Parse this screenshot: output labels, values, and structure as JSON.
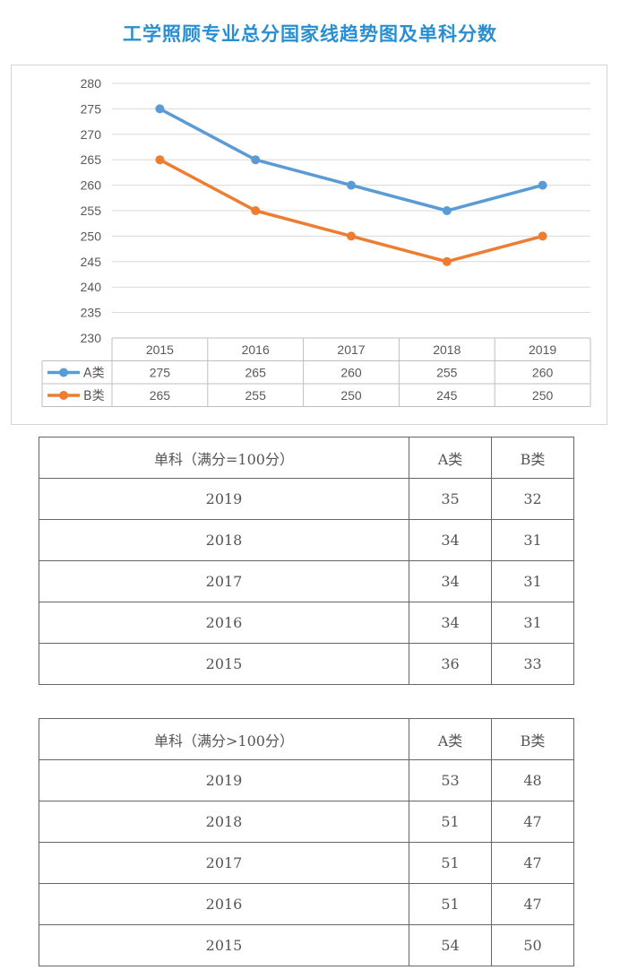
{
  "page_title": "工学照顾专业总分国家线趋势图及单科分数",
  "chart_data": {
    "type": "line",
    "title": "",
    "xlabel": "",
    "ylabel": "",
    "categories": [
      "2015",
      "2016",
      "2017",
      "2018",
      "2019"
    ],
    "ylim": [
      230,
      280
    ],
    "ytick_step": 5,
    "yticks": [
      "230",
      "235",
      "240",
      "245",
      "250",
      "255",
      "260",
      "265",
      "270",
      "275",
      "280"
    ],
    "grid": true,
    "legend": "data-table-below",
    "series": [
      {
        "name": "A类",
        "values": [
          275,
          265,
          260,
          255,
          260
        ],
        "color": "#5b9bd5"
      },
      {
        "name": "B类",
        "values": [
          265,
          255,
          250,
          245,
          250
        ],
        "color": "#ed7d31"
      }
    ]
  },
  "tables": [
    {
      "header": [
        "单科（满分=100分）",
        "A类",
        "B类"
      ],
      "rows": [
        [
          "2019",
          "35",
          "32"
        ],
        [
          "2018",
          "34",
          "31"
        ],
        [
          "2017",
          "34",
          "31"
        ],
        [
          "2016",
          "34",
          "31"
        ],
        [
          "2015",
          "36",
          "33"
        ]
      ]
    },
    {
      "header": [
        "单科（满分>100分）",
        "A类",
        "B类"
      ],
      "rows": [
        [
          "2019",
          "53",
          "48"
        ],
        [
          "2018",
          "51",
          "47"
        ],
        [
          "2017",
          "51",
          "47"
        ],
        [
          "2016",
          "51",
          "47"
        ],
        [
          "2015",
          "54",
          "50"
        ]
      ]
    }
  ]
}
